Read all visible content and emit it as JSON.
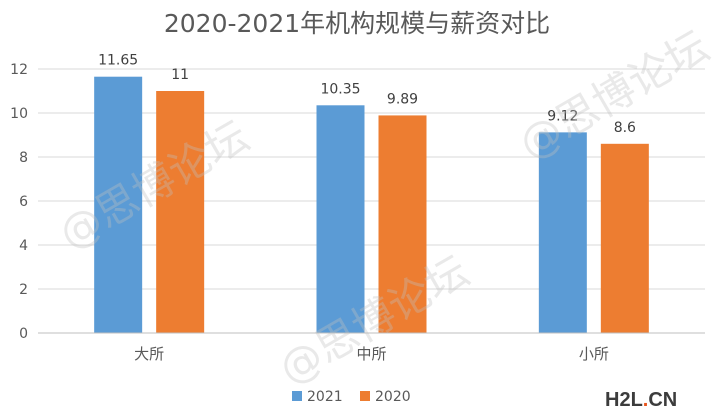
{
  "chart_data": {
    "type": "bar",
    "title": "2020-2021年机构规模与薪资对比",
    "categories": [
      "大所",
      "中所",
      "小所"
    ],
    "series": [
      {
        "name": "2021",
        "values": [
          11.65,
          10.35,
          9.12
        ],
        "labels": [
          "11.65",
          "10.35",
          "9.12"
        ],
        "color": "#5B9BD5"
      },
      {
        "name": "2020",
        "values": [
          11,
          9.89,
          8.6
        ],
        "labels": [
          "11",
          "9.89",
          "8.6"
        ],
        "color": "#ED7D31"
      }
    ],
    "ylim": [
      0,
      12
    ],
    "yticks": [
      0,
      2,
      4,
      6,
      8,
      10,
      12
    ],
    "xlabel": "",
    "ylabel": "",
    "grid": true,
    "legend_position": "bottom"
  },
  "watermark": {
    "text": "@思博论坛"
  },
  "logo": {
    "h2l": "H2L",
    "dot": ".",
    "cn": "CN",
    "color_main": "#3c3c3c",
    "color_accent": "#e8541c"
  }
}
